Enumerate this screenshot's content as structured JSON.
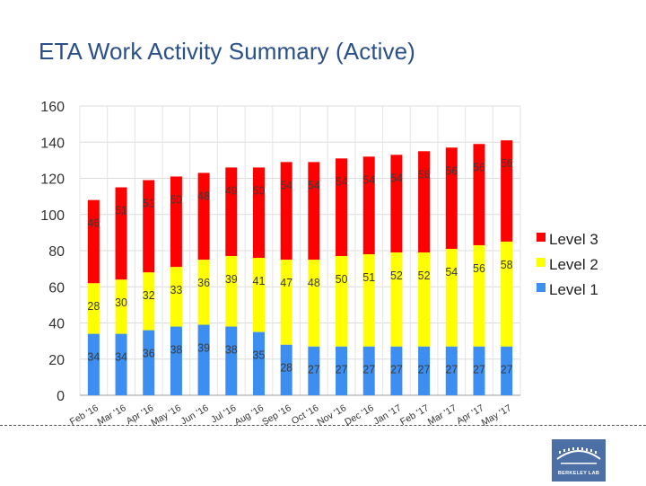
{
  "page": {
    "title": "ETA Work Activity Summary (Active)"
  },
  "logo": {
    "text": "BERKELEY LAB"
  },
  "colors": {
    "level3": "#ff0000",
    "level2": "#ffff00",
    "level1": "#3c8ef0",
    "title": "#2a4f8a",
    "logo_bg": "#4c6fa6"
  },
  "chart_data": {
    "type": "bar",
    "stacked": true,
    "title": "",
    "xlabel": "",
    "ylabel": "",
    "ylim": [
      0,
      160
    ],
    "yticks": [
      0,
      20,
      40,
      60,
      80,
      100,
      120,
      140,
      160
    ],
    "grid": true,
    "legend_position": "right",
    "categories": [
      "Feb '16",
      "Mar '16",
      "Apr '16",
      "May '16",
      "Jun '16",
      "Jul '16",
      "Aug '16",
      "Sep '16",
      "Oct '16",
      "Nov '16",
      "Dec '16",
      "Jan '17",
      "Feb '17",
      "Mar '17",
      "Apr '17",
      "May '17"
    ],
    "series": [
      {
        "name": "Level 1",
        "color": "#3c8ef0",
        "values": [
          34,
          34,
          36,
          38,
          39,
          38,
          35,
          28,
          27,
          27,
          27,
          27,
          27,
          27,
          27,
          27
        ]
      },
      {
        "name": "Level 2",
        "color": "#ffff00",
        "values": [
          28,
          30,
          32,
          33,
          36,
          39,
          41,
          47,
          48,
          50,
          51,
          52,
          52,
          54,
          56,
          58
        ]
      },
      {
        "name": "Level 3",
        "color": "#ff0000",
        "values": [
          46,
          51,
          51,
          50,
          48,
          49,
          50,
          54,
          54,
          54,
          54,
          54,
          56,
          56,
          56,
          56
        ]
      }
    ],
    "legend_order": [
      "Level 3",
      "Level 2",
      "Level 1"
    ]
  }
}
